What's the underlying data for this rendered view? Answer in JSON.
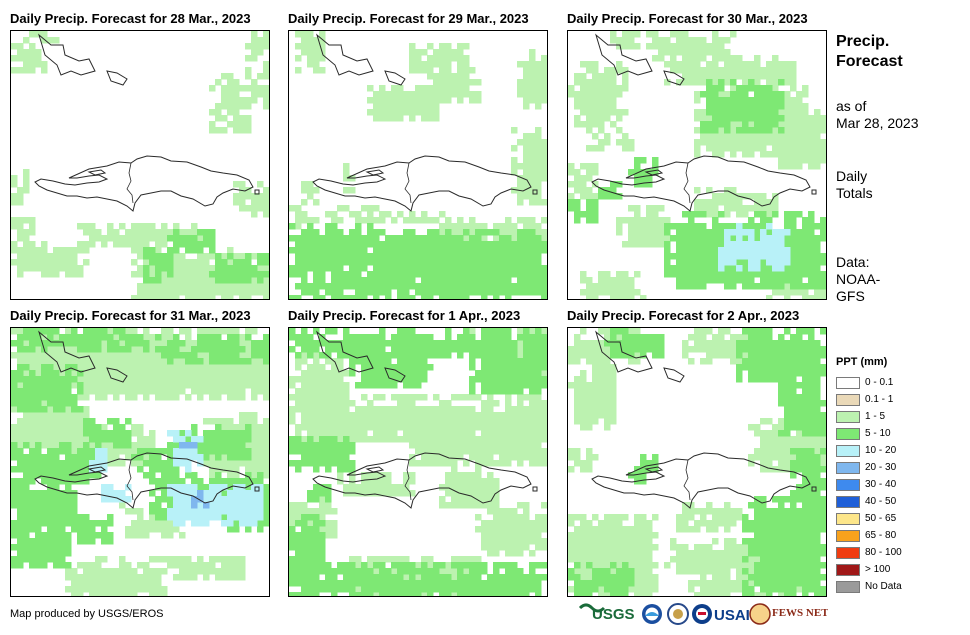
{
  "panels": [
    {
      "title": "Daily Precip. Forecast for 28 Mar., 2023"
    },
    {
      "title": "Daily Precip. Forecast for 29 Mar., 2023"
    },
    {
      "title": "Daily Precip. Forecast for 30 Mar., 2023"
    },
    {
      "title": "Daily Precip. Forecast for 31 Mar., 2023"
    },
    {
      "title": "Daily Precip. Forecast for 1 Apr., 2023"
    },
    {
      "title": "Daily Precip. Forecast for 2 Apr., 2023"
    }
  ],
  "info": {
    "title_line1": "Precip.",
    "title_line2": "Forecast",
    "asof_line1": "as of",
    "asof_line2": "Mar 28, 2023",
    "daily_line1": "Daily",
    "daily_line2": "Totals",
    "data_line1": "Data:",
    "data_line2": "NOAA-",
    "data_line3": "GFS"
  },
  "legend": {
    "title": "PPT (mm)",
    "items": [
      {
        "label": "0 - 0.1",
        "color": "#ffffff"
      },
      {
        "label": "0.1 - 1",
        "color": "#ead9b8"
      },
      {
        "label": "1 - 5",
        "color": "#bcf2b0"
      },
      {
        "label": "5 - 10",
        "color": "#7ee874"
      },
      {
        "label": "10 - 20",
        "color": "#b8f1f8"
      },
      {
        "label": "20 - 30",
        "color": "#7fb7ee"
      },
      {
        "label": "30 - 40",
        "color": "#3e8aee"
      },
      {
        "label": "40 - 50",
        "color": "#1f5fd8"
      },
      {
        "label": "50 - 65",
        "color": "#fde68a"
      },
      {
        "label": "65 - 80",
        "color": "#f8a21c"
      },
      {
        "label": "80 - 100",
        "color": "#f03c10"
      },
      {
        "label": "> 100",
        "color": "#a01818"
      },
      {
        "label": "No Data",
        "color": "#9a9a9a"
      }
    ]
  },
  "footer": {
    "credit": "Map produced by USGS/EROS"
  },
  "logos": {
    "usgs": "USGS",
    "usaid": "USAID",
    "fewsnet": "FEWS NET"
  }
}
